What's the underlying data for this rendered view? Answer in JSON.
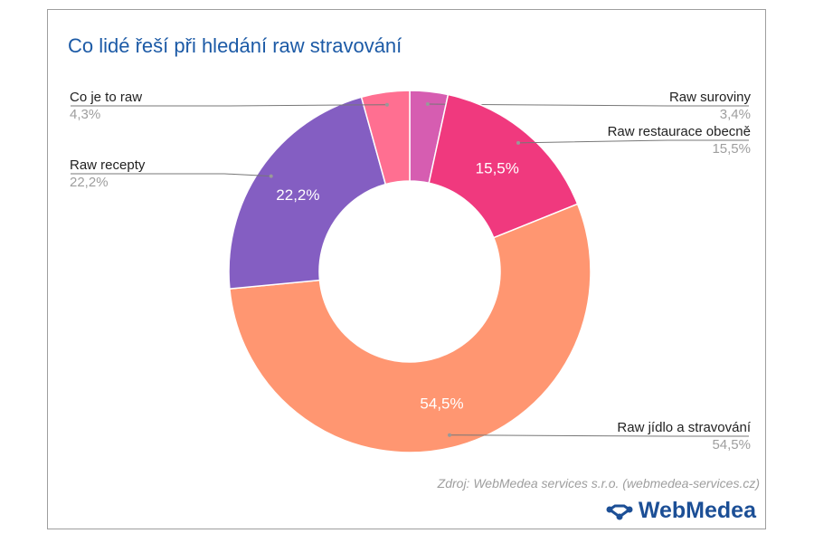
{
  "chart_data": {
    "type": "pie",
    "donut": true,
    "title": "Co lidé řeší při hledání raw stravování",
    "slices": [
      {
        "label": "Raw suroviny",
        "value": 3.4,
        "display": "3,4%",
        "color": "#d65db1"
      },
      {
        "label": "Raw restaurace obecně",
        "value": 15.5,
        "display": "15,5%",
        "color": "#f0397e"
      },
      {
        "label": "Raw jídlo a stravování",
        "value": 54.5,
        "display": "54,5%",
        "color": "#ff9671"
      },
      {
        "label": "Raw recepty",
        "value": 22.2,
        "display": "22,2%",
        "color": "#845ec2"
      },
      {
        "label": "Co je to raw",
        "value": 4.3,
        "display": "4,3%",
        "color": "#ff6f91"
      }
    ],
    "legend": "outside labels with leader lines"
  },
  "source": "Zdroj: WebMedea services s.r.o. (webmedea-services.cz)",
  "logo": {
    "text": "WebMedea",
    "color": "#1c4f96"
  }
}
